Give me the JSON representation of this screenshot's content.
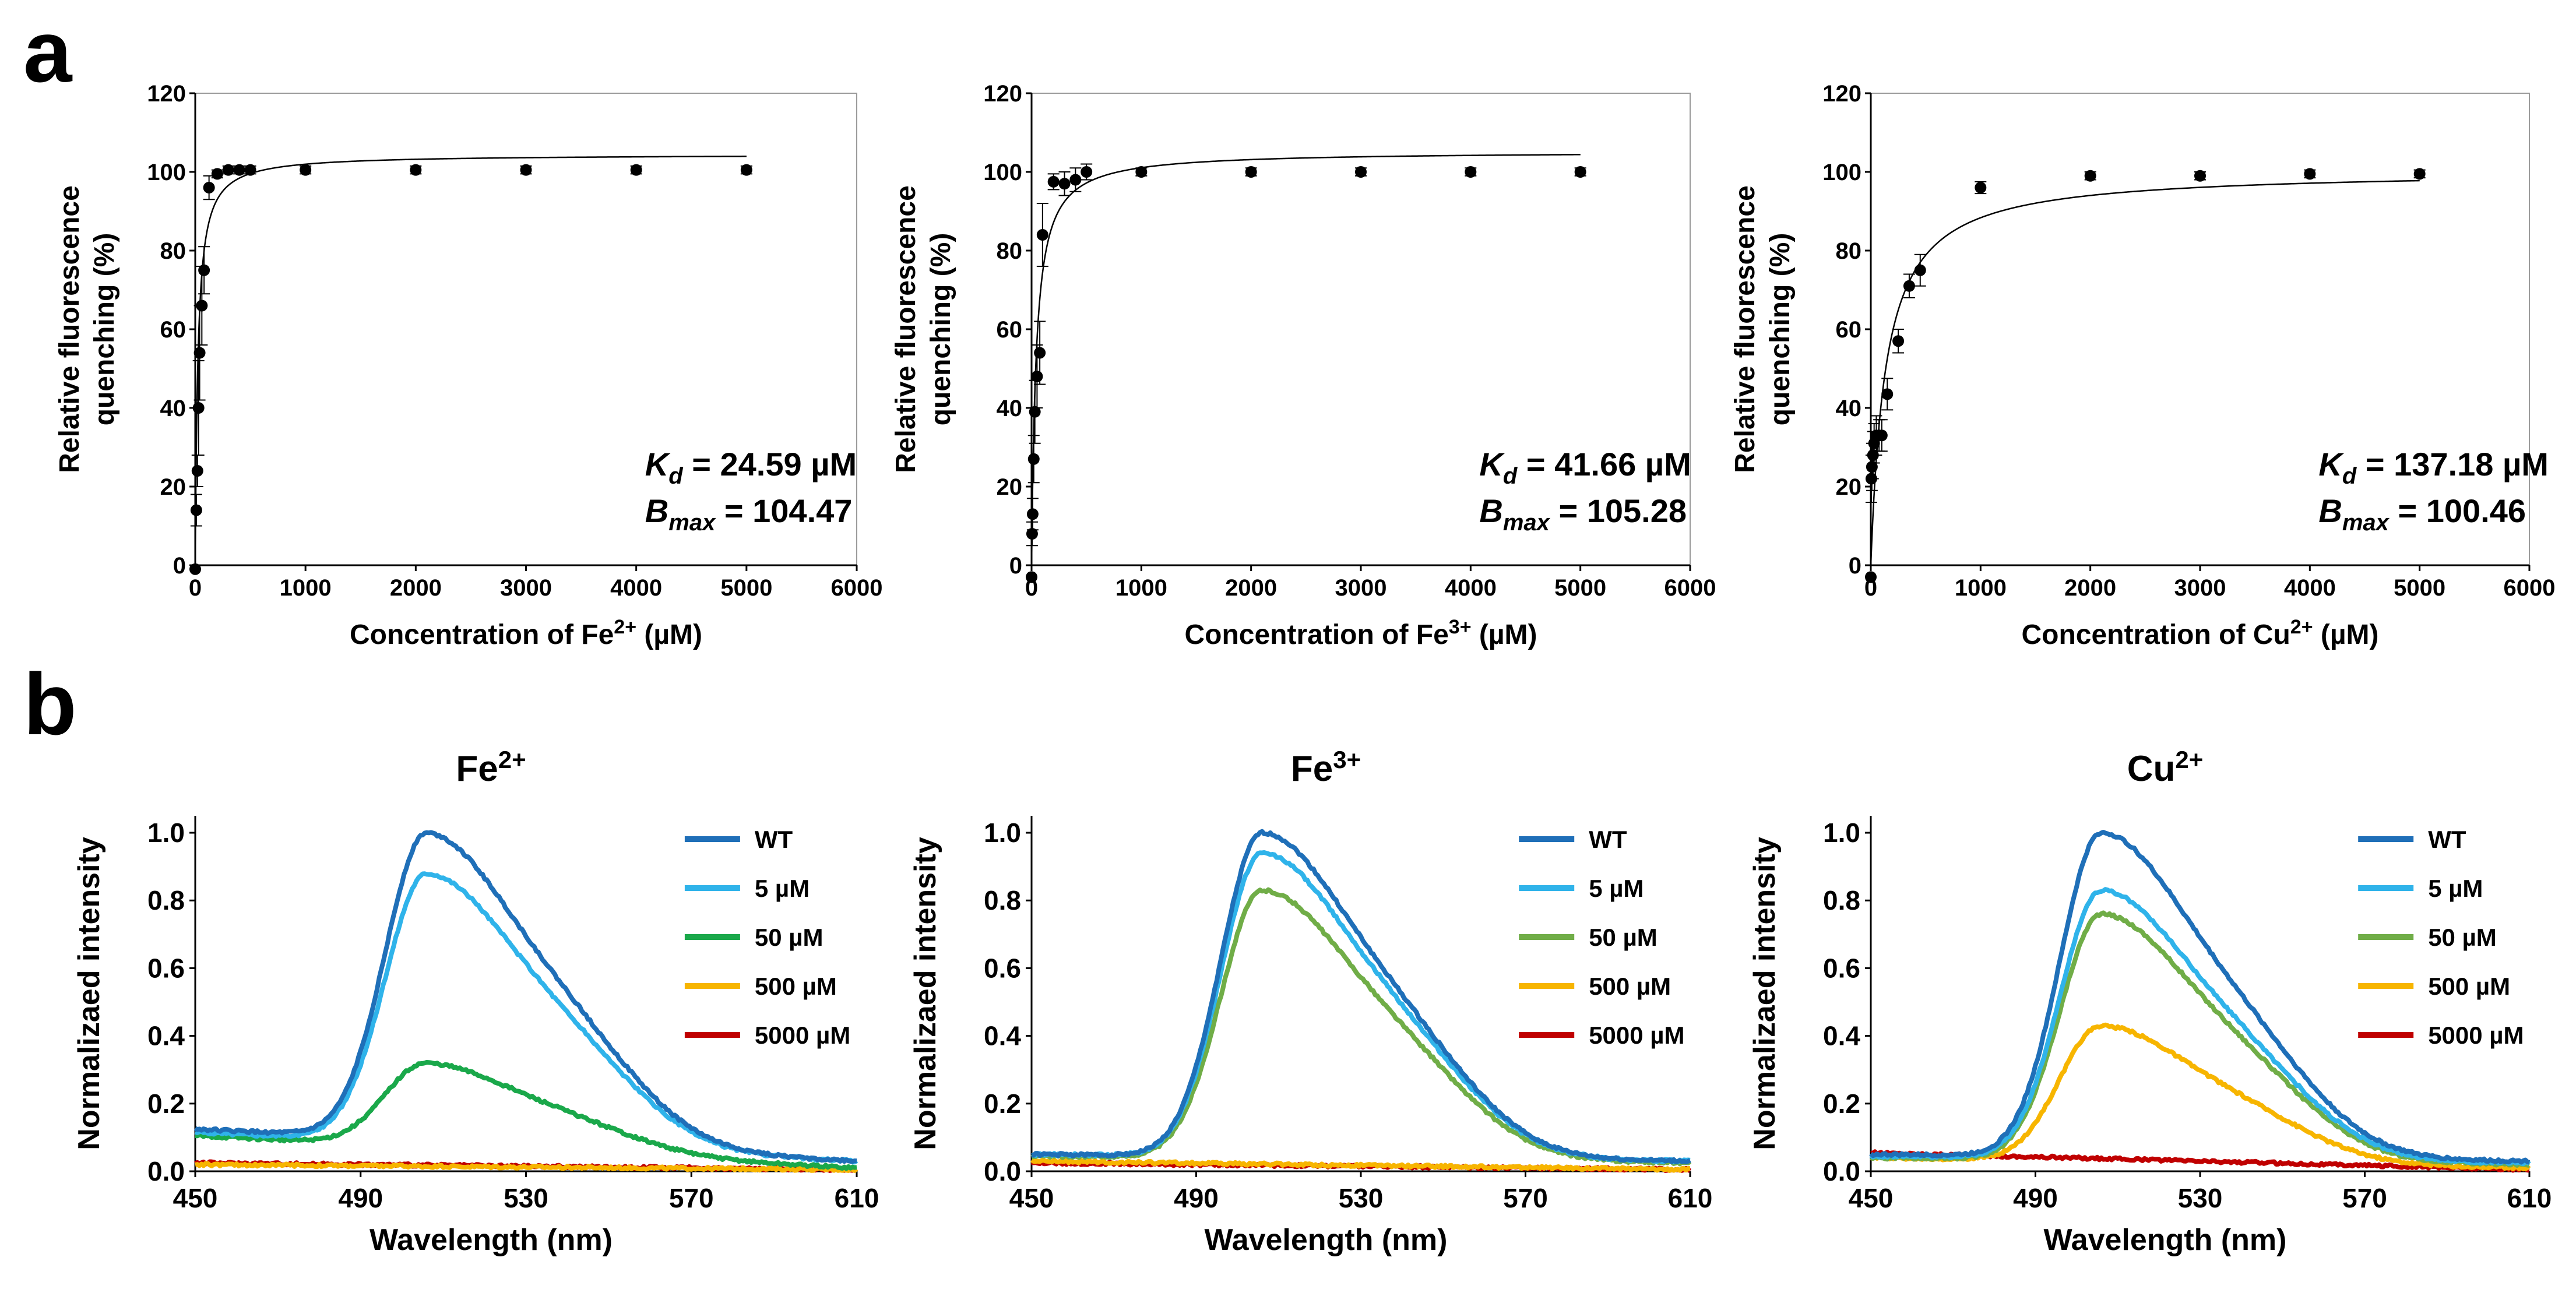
{
  "panel_labels": [
    "a",
    "b"
  ],
  "chart_data": [
    {
      "type": "scatter",
      "panel": "a",
      "title": "",
      "xlabel": "Concentration of Fe",
      "xlabel_sup": "2+",
      "xlabel_tail": " (µM)",
      "ylabel_line1": "Relative fluorescence",
      "ylabel_line2": "quenching (%)",
      "xlim": [
        0,
        6000
      ],
      "ylim": [
        0,
        120
      ],
      "xticks": [
        0,
        1000,
        2000,
        3000,
        4000,
        5000,
        6000
      ],
      "yticks": [
        0,
        20,
        40,
        60,
        80,
        100,
        120
      ],
      "points": [
        {
          "x": 0,
          "y": -1,
          "err": 0
        },
        {
          "x": 10,
          "y": 14,
          "err": 4
        },
        {
          "x": 20,
          "y": 24,
          "err": 4
        },
        {
          "x": 30,
          "y": 40,
          "err": 12
        },
        {
          "x": 40,
          "y": 54,
          "err": 12
        },
        {
          "x": 60,
          "y": 66,
          "err": 10
        },
        {
          "x": 80,
          "y": 75,
          "err": 6
        },
        {
          "x": 125,
          "y": 96,
          "err": 3
        },
        {
          "x": 200,
          "y": 99.5,
          "err": 1
        },
        {
          "x": 300,
          "y": 100.5,
          "err": 1
        },
        {
          "x": 400,
          "y": 100.5,
          "err": 1
        },
        {
          "x": 500,
          "y": 100.5,
          "err": 1
        },
        {
          "x": 1000,
          "y": 100.5,
          "err": 1
        },
        {
          "x": 2000,
          "y": 100.5,
          "err": 1
        },
        {
          "x": 3000,
          "y": 100.5,
          "err": 1
        },
        {
          "x": 4000,
          "y": 100.5,
          "err": 1
        },
        {
          "x": 5000,
          "y": 100.5,
          "err": 1
        }
      ],
      "fit": {
        "model": "Bmax*x/(Kd+x)",
        "Kd": 24.59,
        "Bmax": 104.47
      },
      "annotation_kd": " = 24.59 µM",
      "annotation_bmax": " = 104.47"
    },
    {
      "type": "scatter",
      "panel": "a",
      "title": "",
      "xlabel": "Concentration of Fe",
      "xlabel_sup": "3+",
      "xlabel_tail": " (µM)",
      "ylabel_line1": "Relative fluorescence",
      "ylabel_line2": "quenching (%)",
      "xlim": [
        0,
        6000
      ],
      "ylim": [
        0,
        120
      ],
      "xticks": [
        0,
        1000,
        2000,
        3000,
        4000,
        5000,
        6000
      ],
      "yticks": [
        0,
        20,
        40,
        60,
        80,
        100,
        120
      ],
      "points": [
        {
          "x": 0,
          "y": -3,
          "err": 0
        },
        {
          "x": 5,
          "y": 8,
          "err": 3
        },
        {
          "x": 10,
          "y": 13,
          "err": 4
        },
        {
          "x": 20,
          "y": 27,
          "err": 6
        },
        {
          "x": 30,
          "y": 39,
          "err": 8
        },
        {
          "x": 50,
          "y": 48,
          "err": 8
        },
        {
          "x": 75,
          "y": 54,
          "err": 8
        },
        {
          "x": 100,
          "y": 84,
          "err": 8
        },
        {
          "x": 200,
          "y": 97.5,
          "err": 2
        },
        {
          "x": 300,
          "y": 97,
          "err": 3
        },
        {
          "x": 400,
          "y": 98,
          "err": 3
        },
        {
          "x": 500,
          "y": 100,
          "err": 2
        },
        {
          "x": 1000,
          "y": 100,
          "err": 1
        },
        {
          "x": 2000,
          "y": 100,
          "err": 1
        },
        {
          "x": 3000,
          "y": 100,
          "err": 1
        },
        {
          "x": 4000,
          "y": 100,
          "err": 1
        },
        {
          "x": 5000,
          "y": 100,
          "err": 1
        }
      ],
      "fit": {
        "model": "Bmax*x/(Kd+x)",
        "Kd": 41.66,
        "Bmax": 105.28
      },
      "annotation_kd": " = 41.66 µM",
      "annotation_bmax": " = 105.28"
    },
    {
      "type": "scatter",
      "panel": "a",
      "title": "",
      "xlabel": "Concentration of Cu",
      "xlabel_sup": "2+",
      "xlabel_tail": " (µM)",
      "ylabel_line1": "Relative fluorescence",
      "ylabel_line2": "quenching (%)",
      "xlim": [
        0,
        6000
      ],
      "ylim": [
        0,
        120
      ],
      "xticks": [
        0,
        1000,
        2000,
        3000,
        4000,
        5000,
        6000
      ],
      "yticks": [
        0,
        20,
        40,
        60,
        80,
        100,
        120
      ],
      "points": [
        {
          "x": 0,
          "y": -3,
          "err": 0
        },
        {
          "x": 5,
          "y": 22,
          "err": 6
        },
        {
          "x": 10,
          "y": 25,
          "err": 6
        },
        {
          "x": 20,
          "y": 28,
          "err": 6
        },
        {
          "x": 30,
          "y": 31,
          "err": 5
        },
        {
          "x": 50,
          "y": 33,
          "err": 5
        },
        {
          "x": 75,
          "y": 33,
          "err": 4
        },
        {
          "x": 100,
          "y": 33,
          "err": 4
        },
        {
          "x": 150,
          "y": 43.5,
          "err": 4
        },
        {
          "x": 250,
          "y": 57,
          "err": 3
        },
        {
          "x": 350,
          "y": 71,
          "err": 3
        },
        {
          "x": 450,
          "y": 75,
          "err": 4
        },
        {
          "x": 1000,
          "y": 96,
          "err": 1.5
        },
        {
          "x": 2000,
          "y": 99,
          "err": 1
        },
        {
          "x": 3000,
          "y": 99,
          "err": 1
        },
        {
          "x": 4000,
          "y": 99.5,
          "err": 1
        },
        {
          "x": 5000,
          "y": 99.5,
          "err": 1
        }
      ],
      "fit": {
        "model": "Bmax*x/(Kd+x)",
        "Kd": 137.18,
        "Bmax": 100.46
      },
      "annotation_kd": " = 137.18 µM",
      "annotation_bmax": " = 100.46"
    },
    {
      "type": "line",
      "panel": "b",
      "title": "Fe",
      "title_sup": "2+",
      "xlabel": "Wavelength (nm)",
      "ylabel": "Normalizaed intensity",
      "xlim": [
        450,
        610
      ],
      "ylim": [
        0,
        1.05
      ],
      "xticks": [
        450,
        490,
        530,
        570,
        610
      ],
      "yticks": [
        "0.0",
        "0.2",
        "0.4",
        "0.6",
        "0.8",
        "1.0"
      ],
      "legend": "top-right",
      "series": [
        {
          "name": "WT",
          "color": "#1f6fb8",
          "peak": 1.0,
          "base": 0.125,
          "tail": 0.03
        },
        {
          "name": "5 µM",
          "color": "#2fb3ea",
          "peak": 0.88,
          "base": 0.115,
          "tail": 0.03
        },
        {
          "name": "50 µM",
          "color": "#1aa84a",
          "peak": 0.32,
          "base": 0.105,
          "tail": 0.01
        },
        {
          "name": "500 µM",
          "color": "#f7b500",
          "peak": 0.01,
          "base": 0.02,
          "tail": 0.005
        },
        {
          "name": "5000 µM",
          "color": "#c00000",
          "peak": 0.008,
          "base": 0.025,
          "tail": 0.005
        }
      ]
    },
    {
      "type": "line",
      "panel": "b",
      "title": "Fe",
      "title_sup": "3+",
      "xlabel": "Wavelength (nm)",
      "ylabel": "Normalizaed intensity",
      "xlim": [
        450,
        610
      ],
      "ylim": [
        0,
        1.05
      ],
      "xticks": [
        450,
        490,
        530,
        570,
        610
      ],
      "yticks": [
        "0.0",
        "0.2",
        "0.4",
        "0.6",
        "0.8",
        "1.0"
      ],
      "legend": "top-right",
      "series": [
        {
          "name": "WT",
          "color": "#1f6fb8",
          "peak": 1.0,
          "base": 0.05,
          "tail": 0.03
        },
        {
          "name": "5 µM",
          "color": "#2fb3ea",
          "peak": 0.94,
          "base": 0.05,
          "tail": 0.03
        },
        {
          "name": "50 µM",
          "color": "#70ad47",
          "peak": 0.83,
          "base": 0.045,
          "tail": 0.025
        },
        {
          "name": "500 µM",
          "color": "#f7b500",
          "peak": 0.01,
          "base": 0.03,
          "tail": 0.005
        },
        {
          "name": "5000 µM",
          "color": "#c00000",
          "peak": 0.008,
          "base": 0.025,
          "tail": 0.005
        }
      ]
    },
    {
      "type": "line",
      "panel": "b",
      "title": "Cu",
      "title_sup": "2+",
      "xlabel": "Wavelength (nm)",
      "ylabel": "Normalizaed intensity",
      "xlim": [
        450,
        610
      ],
      "ylim": [
        0,
        1.05
      ],
      "xticks": [
        450,
        490,
        530,
        570,
        610
      ],
      "yticks": [
        "0.0",
        "0.2",
        "0.4",
        "0.6",
        "0.8",
        "1.0"
      ],
      "legend": "top-right",
      "series": [
        {
          "name": "WT",
          "color": "#1f6fb8",
          "peak": 1.0,
          "base": 0.05,
          "tail": 0.03
        },
        {
          "name": "5 µM",
          "color": "#2fb3ea",
          "peak": 0.83,
          "base": 0.045,
          "tail": 0.025
        },
        {
          "name": "50 µM",
          "color": "#70ad47",
          "peak": 0.76,
          "base": 0.04,
          "tail": 0.02
        },
        {
          "name": "500 µM",
          "color": "#f7b500",
          "peak": 0.43,
          "base": 0.04,
          "tail": 0.01
        },
        {
          "name": "5000 µM",
          "color": "#c00000",
          "peak": 0.01,
          "base": 0.055,
          "tail": 0.005
        }
      ]
    }
  ],
  "annotation_labels": {
    "kd_symbol": "K",
    "kd_sub": "d",
    "bmax_symbol": "B",
    "bmax_sub": "max"
  }
}
